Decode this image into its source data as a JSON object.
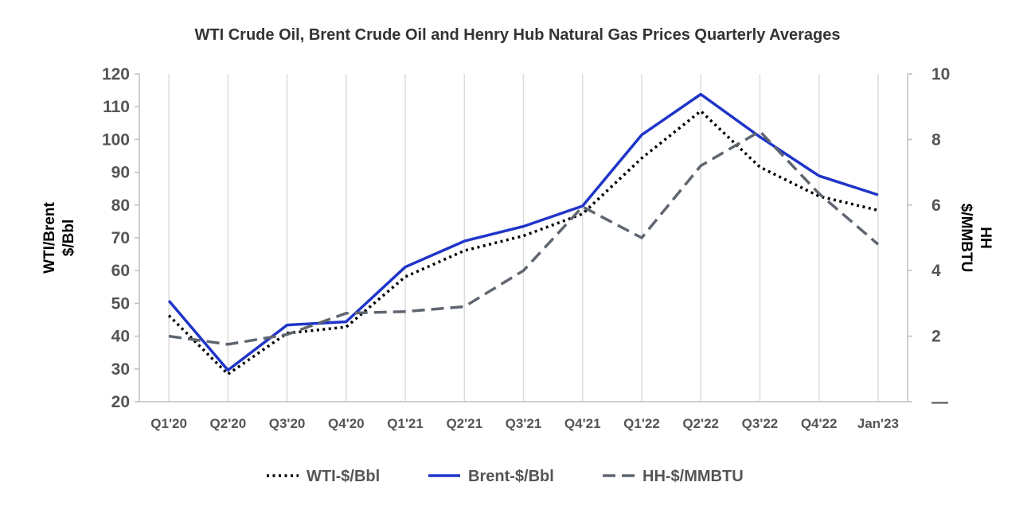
{
  "chart_data": {
    "type": "line",
    "title": "WTI Crude Oil, Brent Crude Oil and Henry Hub Natural Gas Prices Quarterly Averages",
    "categories": [
      "Q1'20",
      "Q2'20",
      "Q3'20",
      "Q4'20",
      "Q1'21",
      "Q2'21",
      "Q3'21",
      "Q4'21",
      "Q1'22",
      "Q2'22",
      "Q3'22",
      "Q4'22",
      "Jan'23"
    ],
    "y_left": {
      "label_lines": [
        "WTI/Brent",
        "$/Bbl"
      ],
      "range": [
        20,
        120
      ],
      "ticks": [
        20,
        30,
        40,
        50,
        60,
        70,
        80,
        90,
        100,
        110,
        120
      ]
    },
    "y_right": {
      "label_lines": [
        "HH",
        "$/MMBTU"
      ],
      "range": [
        0,
        10
      ],
      "ticks": [
        0,
        2,
        4,
        6,
        8,
        10
      ],
      "tick_labels": [
        "—",
        "2",
        "4",
        "6",
        "8",
        "10"
      ]
    },
    "grid": "vertical",
    "legend_position": "bottom",
    "series": [
      {
        "name": "WTI-$/Bbl",
        "axis": "left",
        "style": "dotted",
        "color": "#000000",
        "values": [
          46.3,
          28.4,
          40.9,
          42.8,
          58.1,
          66.1,
          70.6,
          77.3,
          94.3,
          108.7,
          91.6,
          82.7,
          78.4
        ]
      },
      {
        "name": "Brent-$/Bbl",
        "axis": "left",
        "style": "solid",
        "color": "#1f35c8",
        "values": [
          50.8,
          29.6,
          43.4,
          44.4,
          61.1,
          69.0,
          73.5,
          79.7,
          101.4,
          113.8,
          100.8,
          88.9,
          83.1
        ]
      },
      {
        "name": "HH-$/MMBTU",
        "axis": "right",
        "style": "dashed",
        "color": "#5f6670",
        "values": [
          2.0,
          1.75,
          2.05,
          2.7,
          2.75,
          2.9,
          4.0,
          5.95,
          5.0,
          7.2,
          8.25,
          6.35,
          4.8
        ]
      }
    ]
  }
}
